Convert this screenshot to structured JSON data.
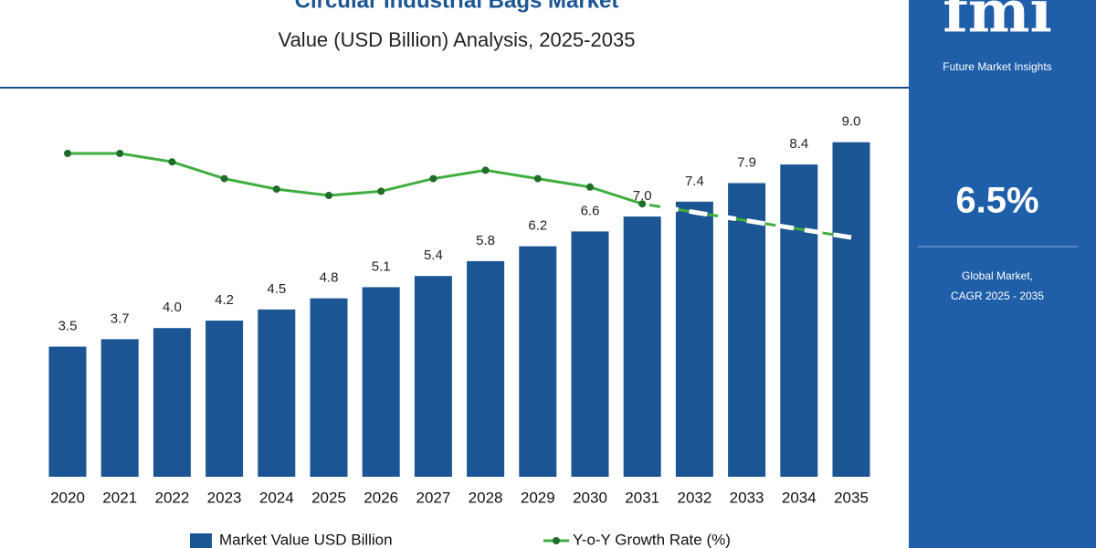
{
  "chart_data": {
    "type": "bar",
    "title": "Circular Industrial Bags Market",
    "subtitle": "Value (USD Billion) Analysis, 2025-2035",
    "categories": [
      "2020",
      "2021",
      "2022",
      "2023",
      "2024",
      "2025",
      "2026",
      "2027",
      "2028",
      "2029",
      "2030",
      "2031",
      "2032",
      "2033",
      "2034",
      "2035"
    ],
    "series": [
      {
        "name": "Market Value USD Billion",
        "type": "bar",
        "color": "#1b5593",
        "values": [
          3.5,
          3.7,
          4.0,
          4.2,
          4.5,
          4.8,
          5.1,
          5.4,
          5.8,
          6.2,
          6.6,
          7.0,
          7.4,
          7.9,
          8.4,
          9.0
        ],
        "value_labels": [
          "3.5",
          "3.7",
          "4.0",
          "4.2",
          "4.5",
          "4.8",
          "5.1",
          "5.4",
          "5.8",
          "6.2",
          "6.6",
          "7.0",
          "7.4",
          "7.9",
          "8.4",
          "9.0"
        ]
      },
      {
        "name": "Y-o-Y Growth Rate (%)",
        "type": "line",
        "axis": "y2",
        "color": "#3fae3f",
        "marker_color": "#1e6b2a",
        "values": [
          7.5,
          7.5,
          7.3,
          6.9,
          6.65,
          6.5,
          6.6,
          6.9,
          7.1,
          6.9,
          6.7,
          6.3,
          6.1,
          5.9,
          5.7,
          5.5
        ],
        "dashed_from_index": 11
      }
    ],
    "ylim": [
      0,
      10
    ],
    "y2lim": [
      0,
      10
    ],
    "legend": "bottom"
  },
  "sidebar": {
    "logo": "fmi",
    "logo_caption": "Future Market Insights",
    "cagr": "6.5%",
    "cagr_label": [
      "Global Market,",
      "CAGR 2025 - 2035"
    ]
  }
}
